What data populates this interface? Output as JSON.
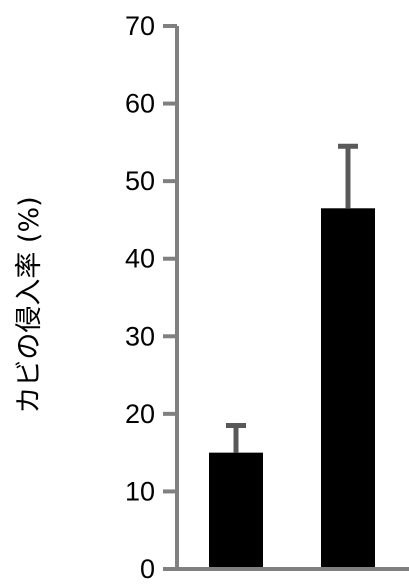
{
  "chart_data": {
    "type": "bar",
    "title": "",
    "xlabel": "",
    "ylabel": "カビの侵入率 (%)",
    "ylim": [
      0,
      70
    ],
    "yticks": [
      0,
      10,
      20,
      30,
      40,
      50,
      60,
      70
    ],
    "categories": [
      "",
      ""
    ],
    "values": [
      15,
      46.5
    ],
    "errors": [
      3.5,
      8
    ],
    "bar_color": "#000000",
    "errorbar_color": "#595959",
    "axis_color": "#808080",
    "grid": false
  }
}
